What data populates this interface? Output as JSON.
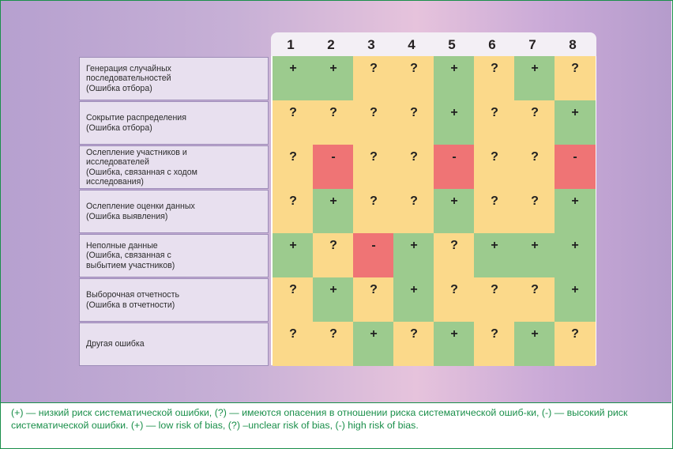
{
  "columns": [
    "1",
    "2",
    "3",
    "4",
    "5",
    "6",
    "7",
    "8"
  ],
  "rows": [
    {
      "label": "Генерация случайных\nпоследовательностей\n(Ошибка отбора)",
      "cells": [
        "+",
        "+",
        "?",
        "?",
        "+",
        "?",
        "+",
        "?"
      ]
    },
    {
      "label": "Сокрытие распределения\n(Ошибка отбора)",
      "cells": [
        "?",
        "?",
        "?",
        "?",
        "+",
        "?",
        "?",
        "+"
      ]
    },
    {
      "label": "Ослепление участников и\nисследователей\n(Ошибка, связанная с ходом\nисследования)",
      "cells": [
        "?",
        "-",
        "?",
        "?",
        "-",
        "?",
        "?",
        "-"
      ]
    },
    {
      "label": "Ослепление оценки данных\n(Ошибка выявления)",
      "cells": [
        "?",
        "+",
        "?",
        "?",
        "+",
        "?",
        "?",
        "+"
      ]
    },
    {
      "label": "Неполные данные\n(Ошибка, связанная с\nвыбытием участников)",
      "cells": [
        "+",
        "?",
        "-",
        "+",
        "?",
        "+",
        "+",
        "+"
      ]
    },
    {
      "label": "Выборочная отчетность\n(Ошибка в отчетности)",
      "cells": [
        "?",
        "+",
        "?",
        "+",
        "?",
        "?",
        "?",
        "+"
      ]
    },
    {
      "label": "Другая ошибка",
      "cells": [
        "?",
        "?",
        "+",
        "?",
        "+",
        "?",
        "+",
        "?"
      ]
    }
  ],
  "colors": {
    "plus": "#9ccb8e",
    "question": "#fbd98a",
    "minus": "#ef7475",
    "caption": "#1a8f4a"
  },
  "caption": "(+) — низкий риск систематической ошибки, (?) — имеются опасения в отношении риска систематической ошиб-ки, (-) — высокий риск систематической ошибки. (+) — low risk of bias, (?) –unclear risk of bias, (-) high risk of bias."
}
